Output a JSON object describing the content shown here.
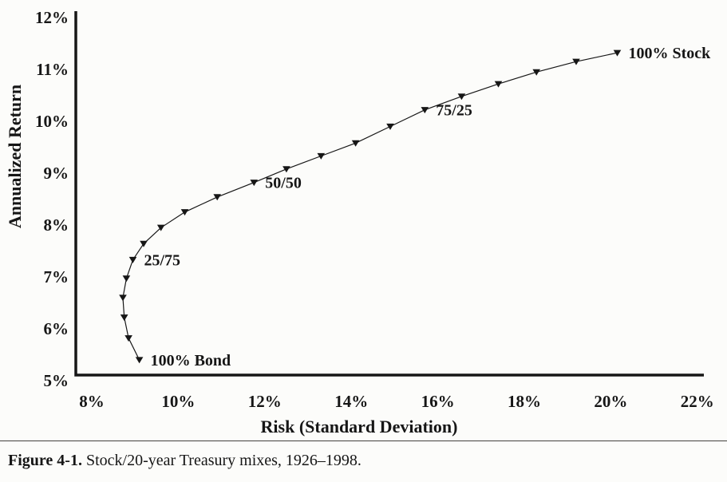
{
  "chart_data": {
    "type": "scatter",
    "title": "",
    "xlabel": "Risk (Standard Deviation)",
    "ylabel": "Annualized Return",
    "xlim": [
      8,
      22
    ],
    "ylim": [
      5,
      12
    ],
    "x_ticks": [
      8,
      10,
      12,
      14,
      16,
      18,
      20,
      22
    ],
    "y_ticks": [
      5,
      6,
      7,
      8,
      9,
      10,
      11,
      12
    ],
    "tick_suffix": "%",
    "grid": false,
    "legend": "none",
    "marker": "triangle-down",
    "line_color": "#161616",
    "series": [
      {
        "name": "Stock/20-year Treasury mix frontier",
        "point_format": [
          "risk_pct",
          "return_pct"
        ],
        "points": [
          [
            9.1,
            5.4
          ],
          [
            8.85,
            5.82
          ],
          [
            8.75,
            6.22
          ],
          [
            8.72,
            6.6
          ],
          [
            8.8,
            6.97
          ],
          [
            8.95,
            7.33
          ],
          [
            9.2,
            7.64
          ],
          [
            9.6,
            7.95
          ],
          [
            10.15,
            8.25
          ],
          [
            10.9,
            8.54
          ],
          [
            11.75,
            8.82
          ],
          [
            12.5,
            9.08
          ],
          [
            13.3,
            9.33
          ],
          [
            14.1,
            9.58
          ],
          [
            14.9,
            9.9
          ],
          [
            15.7,
            10.22
          ],
          [
            16.55,
            10.48
          ],
          [
            17.4,
            10.72
          ],
          [
            18.28,
            10.95
          ],
          [
            19.2,
            11.15
          ],
          [
            20.15,
            11.32
          ]
        ]
      }
    ],
    "annotations": [
      {
        "text": "100% Bond",
        "risk": 9.1,
        "return": 5.4
      },
      {
        "text": "25/75",
        "risk": 8.95,
        "return": 7.33
      },
      {
        "text": "50/50",
        "risk": 11.75,
        "return": 8.82
      },
      {
        "text": "75/25",
        "risk": 15.7,
        "return": 10.22
      },
      {
        "text": "100% Stock",
        "risk": 20.15,
        "return": 11.32
      }
    ]
  },
  "caption": {
    "label": "Figure 4-1.",
    "text": "Stock/20-year Treasury mixes, 1926–1998."
  }
}
